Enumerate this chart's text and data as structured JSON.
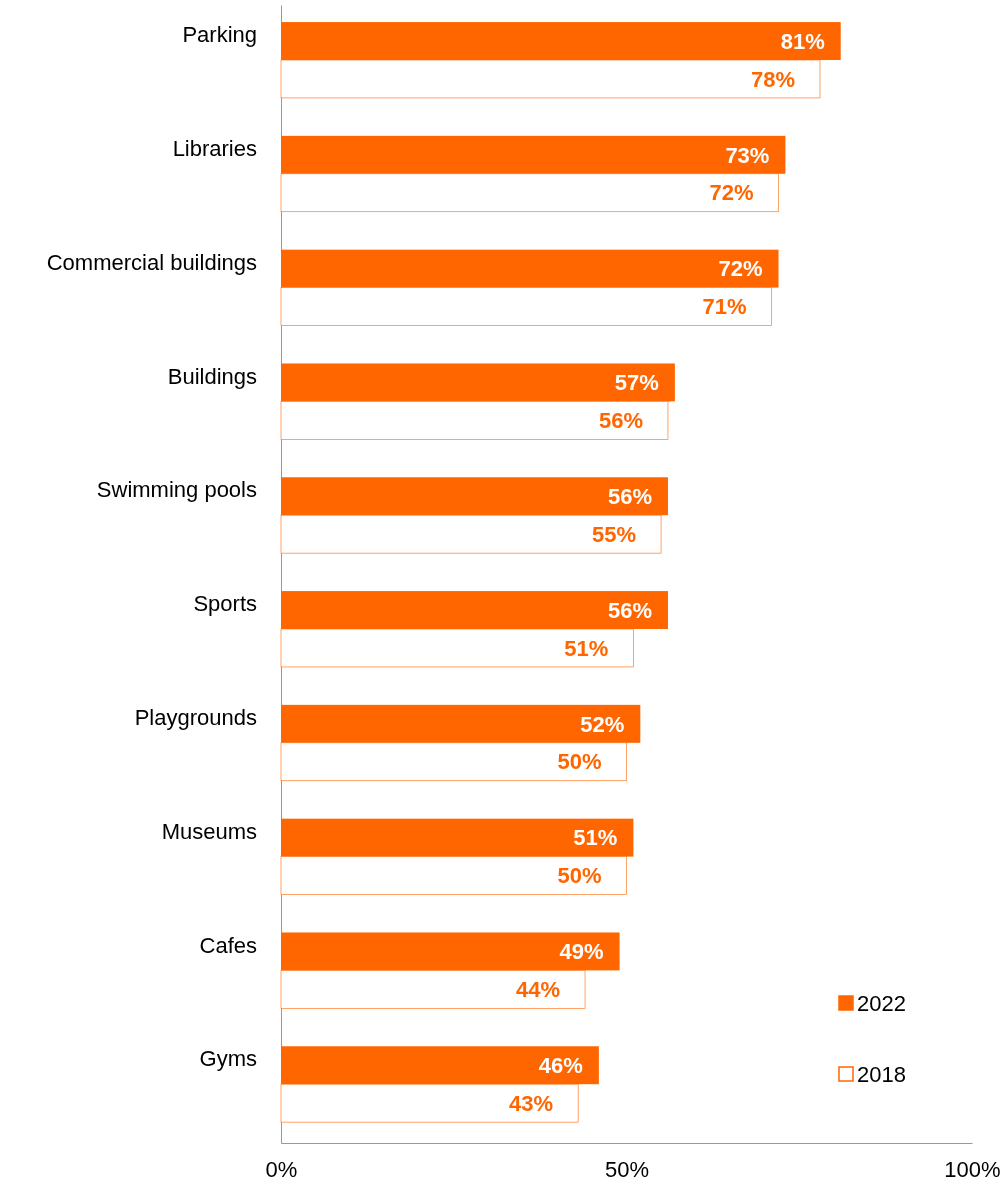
{
  "chart_data": {
    "type": "bar",
    "orientation": "horizontal",
    "categories": [
      "Parking",
      "Libraries",
      "Commercial buildings",
      "Buildings",
      "Swimming pools",
      "Sports",
      "Playgrounds",
      "Museums",
      "Cafes",
      "Gyms"
    ],
    "series": [
      {
        "name": "2022",
        "color": "#ff6600",
        "values": [
          81,
          73,
          72,
          57,
          56,
          56,
          52,
          51,
          49,
          46
        ],
        "value_labels": [
          "81%",
          "73%",
          "72%",
          "57%",
          "56%",
          "56%",
          "52%",
          "51%",
          "49%",
          "46%"
        ]
      },
      {
        "name": "2018",
        "color": "#ff6600",
        "values": [
          78,
          72,
          71,
          56,
          55,
          51,
          50,
          50,
          44,
          43
        ],
        "value_labels": [
          "78%",
          "72%",
          "71%",
          "56%",
          "55%",
          "51%",
          "50%",
          "50%",
          "44%",
          "43%"
        ]
      }
    ],
    "xlim": [
      0,
      100
    ],
    "xticks": [
      {
        "value": 0,
        "label": "0%"
      },
      {
        "value": 50,
        "label": "50%"
      },
      {
        "value": 100,
        "label": "100%"
      }
    ],
    "grid": false,
    "legend": "bottom right"
  }
}
